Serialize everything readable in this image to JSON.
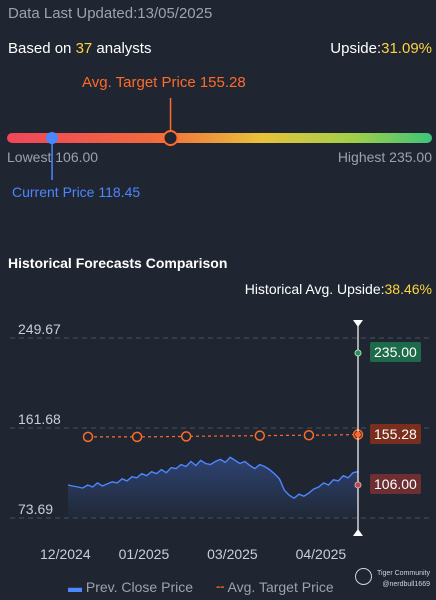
{
  "header": {
    "updated_label": "Data Last Updated:",
    "updated_date": "13/05/2025",
    "based_prefix": "Based on ",
    "analyst_count": "37",
    "based_suffix": " analysts",
    "upside_label": "Upside:",
    "upside_value": "31.09%"
  },
  "range": {
    "avg_target_label": "Avg. Target Price 155.28",
    "lowest_label": "Lowest 106.00",
    "highest_label": "Highest 235.00",
    "current_label": "Current Price 118.45",
    "low": 106.0,
    "high": 235.0,
    "current": 118.45,
    "avg_target": 155.28
  },
  "history": {
    "title": "Historical Forecasts Comparison",
    "upside_label": "Historical Avg. Upside:",
    "upside_value": "38.46%"
  },
  "chart_data": {
    "type": "line",
    "ylim": [
      73.69,
      249.67
    ],
    "yticks": [
      "249.67",
      "161.68",
      "73.69"
    ],
    "xticks": [
      "12/2024",
      "01/2025",
      "03/2025",
      "04/2025"
    ],
    "xtick_index": [
      0,
      16,
      34,
      52
    ],
    "price_labels": {
      "high": "235.00",
      "target": "155.28",
      "low": "106.00"
    },
    "series": [
      {
        "name": "Prev. Close Price",
        "color": "#4d86ff",
        "values": [
          106,
          105,
          104,
          103,
          106,
          104,
          108,
          105,
          107,
          109,
          108,
          112,
          110,
          114,
          113,
          117,
          115,
          119,
          117,
          121,
          118,
          123,
          122,
          126,
          124,
          129,
          125,
          130,
          127,
          126,
          129,
          131,
          128,
          133,
          130,
          127,
          129,
          125,
          122,
          126,
          124,
          121,
          117,
          112,
          101,
          96,
          93,
          97,
          95,
          98,
          102,
          104,
          108,
          106,
          111,
          110,
          115,
          113,
          118,
          119
        ]
      },
      {
        "name": "Avg. Target Price",
        "color": "#ff6a2a",
        "values": [
          153.0,
          153.0,
          153.0,
          153.2,
          153.5,
          153.8,
          154.0,
          154.2,
          154.4,
          154.6,
          154.8,
          155.28
        ],
        "marker_index": [
          0,
          2,
          4,
          7,
          9,
          11
        ]
      }
    ]
  },
  "legend": {
    "close_label": "Prev. Close Price",
    "target_label": "Avg. Target Price"
  },
  "watermark": {
    "brand": "Tiger Community",
    "handle": "@nerdbull1669"
  },
  "colors": {
    "accent_yellow": "#ffd23f",
    "target_orange": "#ff6a2a",
    "price_blue": "#4d86ff",
    "high_green": "#1e6b4a",
    "target_box": "#7a2f1e",
    "low_box": "#6e2f33"
  }
}
